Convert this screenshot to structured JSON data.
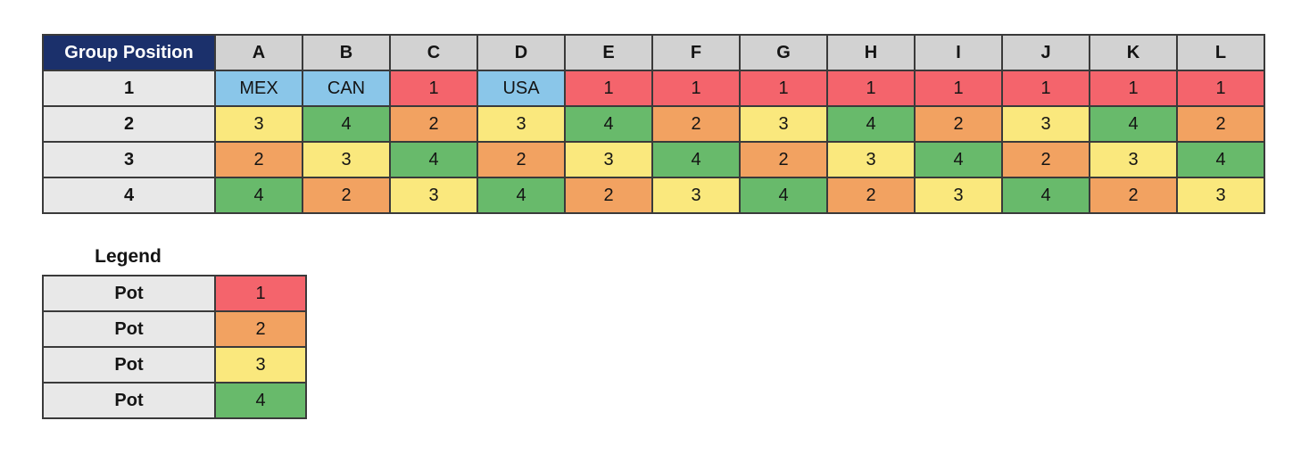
{
  "colors": {
    "corner_bg": "#1b306b",
    "corner_text": "#ffffff",
    "col_header_bg": "#d2d2d2",
    "row_header_bg": "#e8e8e8",
    "host": "#8ac6e9",
    "pot1": "#f4646c",
    "pot2": "#f2a261",
    "pot3": "#fae87d",
    "pot4": "#68ba6b",
    "border": "#3a3a3a",
    "text": "#141414"
  },
  "grid": {
    "corner_label": "Group Position",
    "columns": [
      "A",
      "B",
      "C",
      "D",
      "E",
      "F",
      "G",
      "H",
      "I",
      "J",
      "K",
      "L"
    ],
    "rows": [
      {
        "position": "1",
        "cells": [
          {
            "text": "MEX",
            "pot": "host"
          },
          {
            "text": "CAN",
            "pot": "host"
          },
          {
            "text": "1",
            "pot": "1"
          },
          {
            "text": "USA",
            "pot": "host"
          },
          {
            "text": "1",
            "pot": "1"
          },
          {
            "text": "1",
            "pot": "1"
          },
          {
            "text": "1",
            "pot": "1"
          },
          {
            "text": "1",
            "pot": "1"
          },
          {
            "text": "1",
            "pot": "1"
          },
          {
            "text": "1",
            "pot": "1"
          },
          {
            "text": "1",
            "pot": "1"
          },
          {
            "text": "1",
            "pot": "1"
          }
        ]
      },
      {
        "position": "2",
        "cells": [
          {
            "text": "3",
            "pot": "3"
          },
          {
            "text": "4",
            "pot": "4"
          },
          {
            "text": "2",
            "pot": "2"
          },
          {
            "text": "3",
            "pot": "3"
          },
          {
            "text": "4",
            "pot": "4"
          },
          {
            "text": "2",
            "pot": "2"
          },
          {
            "text": "3",
            "pot": "3"
          },
          {
            "text": "4",
            "pot": "4"
          },
          {
            "text": "2",
            "pot": "2"
          },
          {
            "text": "3",
            "pot": "3"
          },
          {
            "text": "4",
            "pot": "4"
          },
          {
            "text": "2",
            "pot": "2"
          }
        ]
      },
      {
        "position": "3",
        "cells": [
          {
            "text": "2",
            "pot": "2"
          },
          {
            "text": "3",
            "pot": "3"
          },
          {
            "text": "4",
            "pot": "4"
          },
          {
            "text": "2",
            "pot": "2"
          },
          {
            "text": "3",
            "pot": "3"
          },
          {
            "text": "4",
            "pot": "4"
          },
          {
            "text": "2",
            "pot": "2"
          },
          {
            "text": "3",
            "pot": "3"
          },
          {
            "text": "4",
            "pot": "4"
          },
          {
            "text": "2",
            "pot": "2"
          },
          {
            "text": "3",
            "pot": "3"
          },
          {
            "text": "4",
            "pot": "4"
          }
        ]
      },
      {
        "position": "4",
        "cells": [
          {
            "text": "4",
            "pot": "4"
          },
          {
            "text": "2",
            "pot": "2"
          },
          {
            "text": "3",
            "pot": "3"
          },
          {
            "text": "4",
            "pot": "4"
          },
          {
            "text": "2",
            "pot": "2"
          },
          {
            "text": "3",
            "pot": "3"
          },
          {
            "text": "4",
            "pot": "4"
          },
          {
            "text": "2",
            "pot": "2"
          },
          {
            "text": "3",
            "pot": "3"
          },
          {
            "text": "4",
            "pot": "4"
          },
          {
            "text": "2",
            "pot": "2"
          },
          {
            "text": "3",
            "pot": "3"
          }
        ]
      }
    ]
  },
  "legend": {
    "title": "Legend",
    "rows": [
      {
        "label": "Pot",
        "value": "1",
        "pot": "1"
      },
      {
        "label": "Pot",
        "value": "2",
        "pot": "2"
      },
      {
        "label": "Pot",
        "value": "3",
        "pot": "3"
      },
      {
        "label": "Pot",
        "value": "4",
        "pot": "4"
      }
    ]
  },
  "chart_data": {
    "type": "table",
    "title": "Group Position",
    "columns": [
      "Group Position",
      "A",
      "B",
      "C",
      "D",
      "E",
      "F",
      "G",
      "H",
      "I",
      "J",
      "K",
      "L"
    ],
    "rows": [
      [
        "1",
        "MEX",
        "CAN",
        "1",
        "USA",
        "1",
        "1",
        "1",
        "1",
        "1",
        "1",
        "1",
        "1"
      ],
      [
        "2",
        "3",
        "4",
        "2",
        "3",
        "4",
        "2",
        "3",
        "4",
        "2",
        "3",
        "4",
        "2"
      ],
      [
        "3",
        "2",
        "3",
        "4",
        "2",
        "3",
        "4",
        "2",
        "3",
        "4",
        "2",
        "3",
        "4"
      ],
      [
        "4",
        "4",
        "2",
        "3",
        "4",
        "2",
        "3",
        "4",
        "2",
        "3",
        "4",
        "2",
        "3"
      ]
    ],
    "legend_entries": [
      {
        "label": "Pot",
        "value": "1",
        "color": "#f4646c"
      },
      {
        "label": "Pot",
        "value": "2",
        "color": "#f2a261"
      },
      {
        "label": "Pot",
        "value": "3",
        "color": "#fae87d"
      },
      {
        "label": "Pot",
        "value": "4",
        "color": "#68ba6b"
      }
    ],
    "cell_color_coding": "Pot number cells colored per legend; MEX, CAN, USA host cells colored light blue #8ac6e9"
  }
}
